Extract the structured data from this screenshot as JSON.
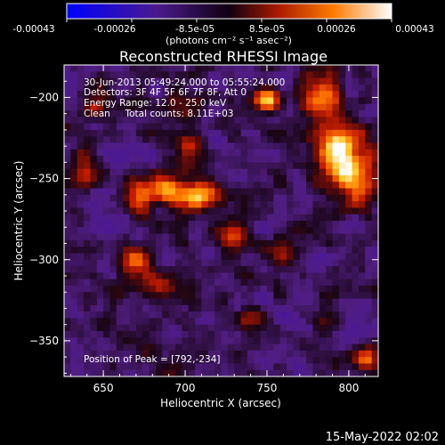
{
  "chart_data": {
    "type": "heatmap",
    "title": "Reconstructed RHESSI Image",
    "xlabel": "Heliocentric X (arcsec)",
    "ylabel": "Heliocentric Y (arcsec)",
    "xlim": [
      626,
      818
    ],
    "ylim": [
      -372,
      -180
    ],
    "x_ticks": [
      650,
      700,
      750,
      800
    ],
    "y_ticks": [
      -350,
      -300,
      -250,
      -200
    ],
    "colorbar": {
      "label": "(photons cm⁻² s⁻¹ asec⁻²)",
      "min": -0.00043,
      "max": 0.00043,
      "tick_labels": [
        "-0.00043",
        "-0.00026",
        "-8.5e-05",
        "8.5e-05",
        "0.00026",
        "0.00043"
      ]
    },
    "annotations": [
      "30-Jun-2013 05:49:24.000 to 05:55:24.000",
      "Detectors: 3F 4F 5F 6F 7F 8F, Att 0",
      "Energy Range: 12.0 - 25.0 keV",
      "Clean     Total counts: 8.11E+03",
      "Position of Peak = [792,-234]"
    ],
    "peak": [
      792,
      -234
    ],
    "sources": [
      {
        "x": 792,
        "y": -234,
        "amp": 1.0,
        "sx": 9,
        "sy": 11
      },
      {
        "x": 805,
        "y": -250,
        "amp": 0.75,
        "sx": 10,
        "sy": 12
      },
      {
        "x": 785,
        "y": -200,
        "amp": 0.75,
        "sx": 8,
        "sy": 10
      },
      {
        "x": 750,
        "y": -202,
        "amp": 0.9,
        "sx": 5,
        "sy": 5
      },
      {
        "x": 707,
        "y": -262,
        "amp": 0.85,
        "sx": 9,
        "sy": 6
      },
      {
        "x": 690,
        "y": -257,
        "amp": 0.7,
        "sx": 8,
        "sy": 6
      },
      {
        "x": 672,
        "y": -262,
        "amp": 0.7,
        "sx": 6,
        "sy": 8
      },
      {
        "x": 702,
        "y": -232,
        "amp": 0.55,
        "sx": 6,
        "sy": 7
      },
      {
        "x": 668,
        "y": -300,
        "amp": 0.6,
        "sx": 6,
        "sy": 7
      },
      {
        "x": 683,
        "y": -315,
        "amp": 0.55,
        "sx": 8,
        "sy": 6
      },
      {
        "x": 730,
        "y": -285,
        "amp": 0.55,
        "sx": 6,
        "sy": 7
      },
      {
        "x": 760,
        "y": -295,
        "amp": 0.45,
        "sx": 6,
        "sy": 6
      },
      {
        "x": 645,
        "y": -205,
        "amp": 0.5,
        "sx": 6,
        "sy": 7
      },
      {
        "x": 638,
        "y": -245,
        "amp": 0.45,
        "sx": 5,
        "sy": 8
      },
      {
        "x": 810,
        "y": -362,
        "amp": 0.6,
        "sx": 6,
        "sy": 5
      },
      {
        "x": 695,
        "y": -200,
        "amp": 0.35,
        "sx": 5,
        "sy": 5
      },
      {
        "x": 740,
        "y": -335,
        "amp": 0.3,
        "sx": 6,
        "sy": 5
      }
    ]
  },
  "footer": {
    "date": "15-May-2022 02:02"
  }
}
